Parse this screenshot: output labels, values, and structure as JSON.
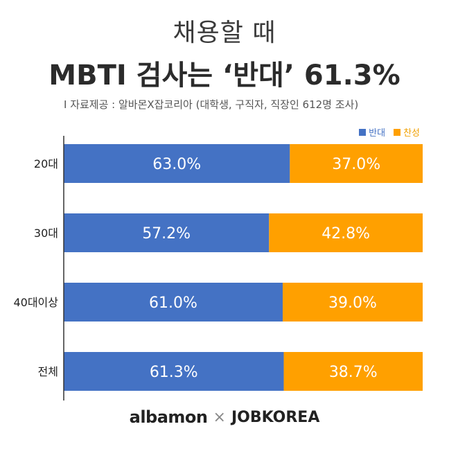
{
  "header": {
    "title_line1": "채용할 때",
    "title_line2": "MBTI 검사는 ‘반대’ 61.3%",
    "source": "I 자료제공 : 알바몬X잡코리아 (대학생, 구직자, 직장인 612명 조사)"
  },
  "footer": {
    "brand_left": "albamon",
    "separator": "×",
    "brand_right": "JOBKOREA"
  },
  "colors": {
    "oppose": "#4472c4",
    "favor": "#ffa000"
  },
  "chart_data": {
    "type": "bar",
    "orientation": "horizontal",
    "stacked": true,
    "percent": true,
    "categories": [
      "20대",
      "30대",
      "40대이상",
      "전체"
    ],
    "series": [
      {
        "name": "반대",
        "values": [
          63.0,
          57.2,
          61.0,
          61.3
        ],
        "labels": [
          "63.0%",
          "57.2%",
          "61.0%",
          "61.3%"
        ]
      },
      {
        "name": "찬성",
        "values": [
          37.0,
          42.8,
          39.0,
          38.7
        ],
        "labels": [
          "37.0%",
          "42.8%",
          "39.0%",
          "38.7%"
        ]
      }
    ],
    "xlim": [
      0,
      100
    ],
    "legend": "top-right",
    "grid": false
  }
}
